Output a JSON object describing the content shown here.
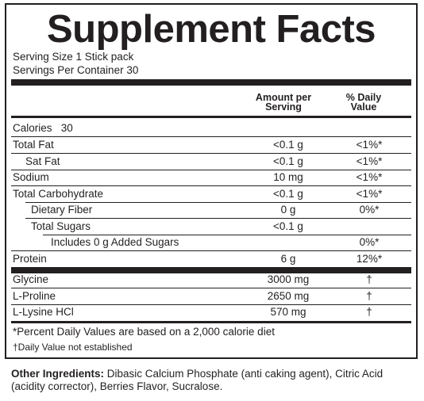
{
  "title": "Supplement Facts",
  "serving_size": "Serving Size 1 Stick pack",
  "servings_per_container": "Servings Per Container 30",
  "headers": {
    "amount": "Amount per",
    "amount_2": "Serving",
    "daily_value": "% Daily",
    "daily_value_2": "Value"
  },
  "calories": {
    "label": "Calories",
    "value": "30"
  },
  "nutrients": [
    {
      "label": "Total Fat",
      "amount": "<0.1 g",
      "dv": "<1%*"
    },
    {
      "label": "Sat Fat",
      "amount": "<0.1 g",
      "dv": "<1%*"
    },
    {
      "label": "Sodium",
      "amount": "10 mg",
      "dv": "<1%*"
    },
    {
      "label": "Total Carbohydrate",
      "amount": "<0.1 g",
      "dv": "<1%*"
    },
    {
      "label": "Dietary Fiber",
      "amount": "0 g",
      "dv": "0%*"
    },
    {
      "label": "Total Sugars",
      "amount": "<0.1 g",
      "dv": ""
    },
    {
      "label": "Includes 0 g Added Sugars",
      "amount": "",
      "dv": "0%*"
    },
    {
      "label": "Protein",
      "amount": "6 g",
      "dv": "12%*"
    }
  ],
  "ingredients_list": [
    {
      "label": "Glycine",
      "amount": "3000 mg",
      "dv": "†"
    },
    {
      "label": "L-Proline",
      "amount": "2650 mg",
      "dv": "†"
    },
    {
      "label": "L-Lysine HCl",
      "amount": "570 mg",
      "dv": "†"
    }
  ],
  "footnotes": {
    "percent": "*Percent Daily Values are based on a 2,000 calorie diet",
    "dagger": "†Daily Value not established"
  },
  "other_ingredients": {
    "label": "Other Ingredients:",
    "text": " Dibasic Calcium Phosphate (anti caking agent), Citric Acid (acidity corrector), Berries Flavor, Sucralose."
  }
}
